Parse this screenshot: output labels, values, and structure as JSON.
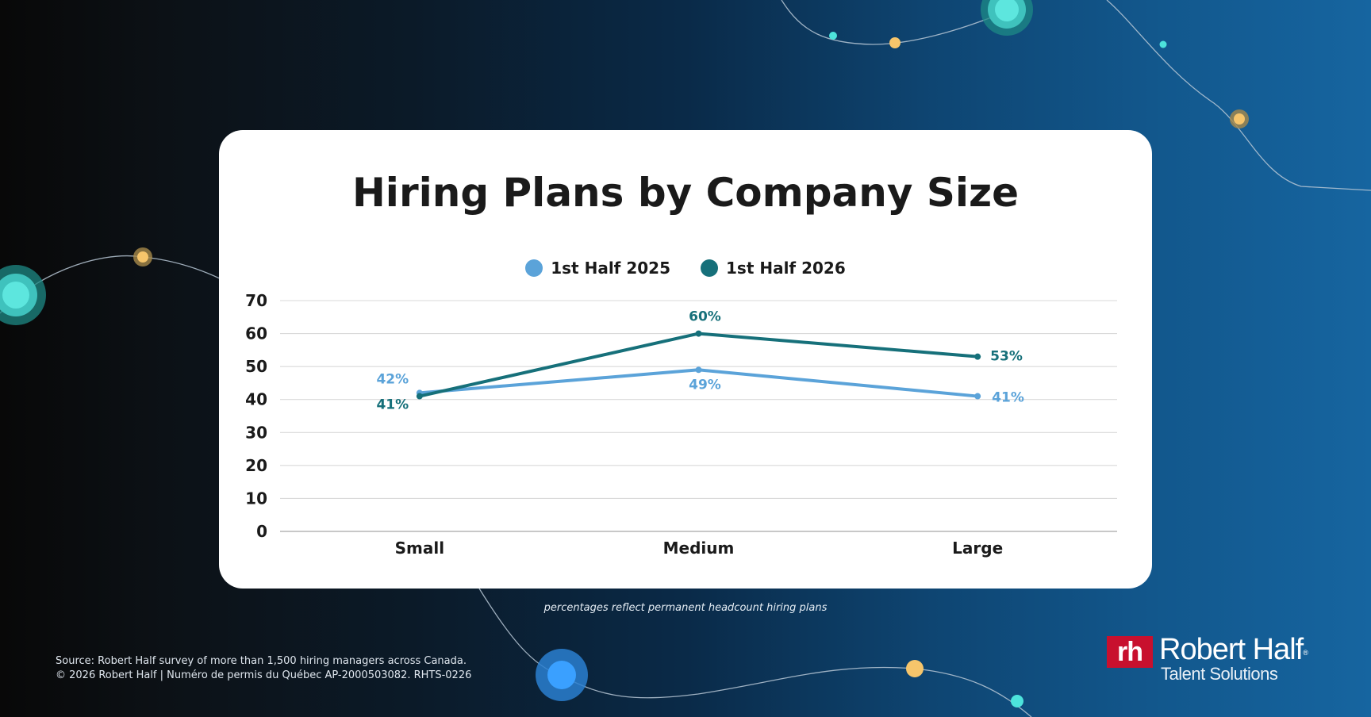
{
  "chart_data": {
    "type": "line",
    "title": "Hiring Plans by Company Size",
    "categories": [
      "Small",
      "Medium",
      "Large"
    ],
    "series": [
      {
        "name": "1st Half 2025",
        "values": [
          42,
          49,
          41
        ],
        "color": "#5ba3d9",
        "labels": [
          "42%",
          "49%",
          "41%"
        ]
      },
      {
        "name": "1st Half 2026",
        "values": [
          41,
          60,
          53
        ],
        "color": "#16707a",
        "labels": [
          "41%",
          "60%",
          "53%"
        ]
      }
    ],
    "xlabel": "",
    "ylabel": "",
    "ylim": [
      0,
      70
    ],
    "yticks": [
      0,
      10,
      20,
      30,
      40,
      50,
      60,
      70
    ],
    "grid": true,
    "legend_position": "top"
  },
  "card": {
    "title": "Hiring Plans by Company Size",
    "legend": [
      {
        "label": "1st Half 2025",
        "color": "#5ba3d9"
      },
      {
        "label": "1st Half 2026",
        "color": "#16707a"
      }
    ]
  },
  "footnote": "percentages reflect permanent headcount hiring plans",
  "source": {
    "line1": "Source: Robert Half survey of more than 1,500 hiring managers across Canada.",
    "line2": "© 2026 Robert Half | Numéro de permis du Québec AP-2000503082. RHTS-0226"
  },
  "logo": {
    "mark": "rh",
    "name": "Robert Half",
    "registered": "®",
    "subtitle": "Talent Solutions",
    "brand_color": "#c8102e"
  },
  "colors": {
    "series_2025": "#5ba3d9",
    "series_2026": "#16707a",
    "grid": "#d9d9d9",
    "axis": "#b5b5b5",
    "text_dark": "#1a1a1a"
  }
}
